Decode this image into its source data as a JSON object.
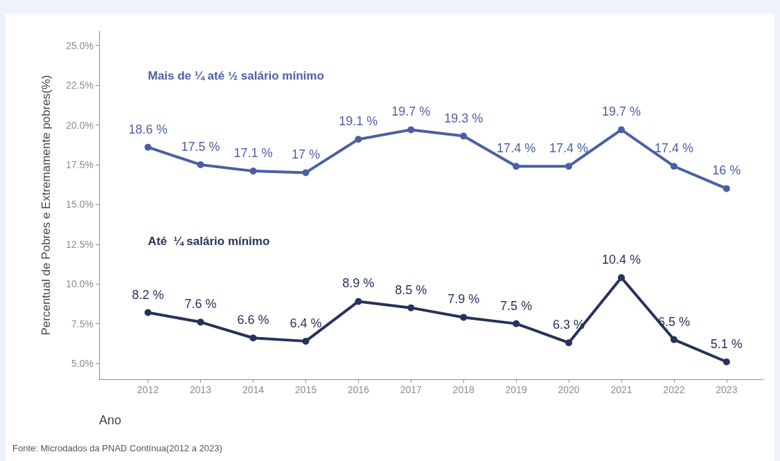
{
  "chart_data": {
    "type": "line",
    "xlabel": "Ano",
    "ylabel": "Percentual de Pobres e Extremamente pobres(%)",
    "x": [
      2012,
      2013,
      2014,
      2015,
      2016,
      2017,
      2018,
      2019,
      2020,
      2021,
      2022,
      2023
    ],
    "series": [
      {
        "name": "Mais de ¼ até ½ salário mínimo",
        "color": "#4a5fa5",
        "values": [
          18.6,
          17.5,
          17.1,
          17,
          19.1,
          19.7,
          19.3,
          17.4,
          17.4,
          19.7,
          17.4,
          16
        ],
        "value_labels": [
          "18.6 %",
          "17.5 %",
          "17.1 %",
          "17 %",
          "19.1 %",
          "19.7 %",
          "19.3 %",
          "17.4 %",
          "17.4 %",
          "19.7 %",
          "17.4 %",
          "16 %"
        ]
      },
      {
        "name": "Até  ¼ salário mínimo",
        "color": "#26325a",
        "values": [
          8.2,
          7.6,
          6.6,
          6.4,
          8.9,
          8.5,
          7.9,
          7.5,
          6.3,
          10.4,
          6.5,
          5.1
        ],
        "value_labels": [
          "8.2 %",
          "7.6 %",
          "6.6 %",
          "6.4 %",
          "8.9 %",
          "8.5 %",
          "7.9 %",
          "7.5 %",
          "6.3 %",
          "10.4 %",
          "6.5 %",
          "5.1 %"
        ]
      }
    ],
    "xlim": [
      2011.07,
      2023.7
    ],
    "xticks": [
      2012,
      2013,
      2014,
      2015,
      2016,
      2017,
      2018,
      2019,
      2020,
      2021,
      2022,
      2023
    ],
    "ylim": [
      4.0,
      25.9
    ],
    "yticks": [
      {
        "value": 5,
        "label": "5.0%"
      },
      {
        "value": 7.5,
        "label": "7.5%"
      },
      {
        "value": 10,
        "label": "10.0%"
      },
      {
        "value": 12.5,
        "label": "12.5%"
      },
      {
        "value": 15,
        "label": "15.0%"
      },
      {
        "value": 17.5,
        "label": "17.5%"
      },
      {
        "value": 20,
        "label": "20.0%"
      },
      {
        "value": 22.5,
        "label": "22.5%"
      },
      {
        "value": 25,
        "label": "25.0%"
      }
    ],
    "grid": false,
    "legend": false,
    "marker": "circle",
    "line_style": "solid",
    "annotations": [
      "Fonte: Microdados da PNAD Contínua(2012 a 2023)"
    ]
  }
}
